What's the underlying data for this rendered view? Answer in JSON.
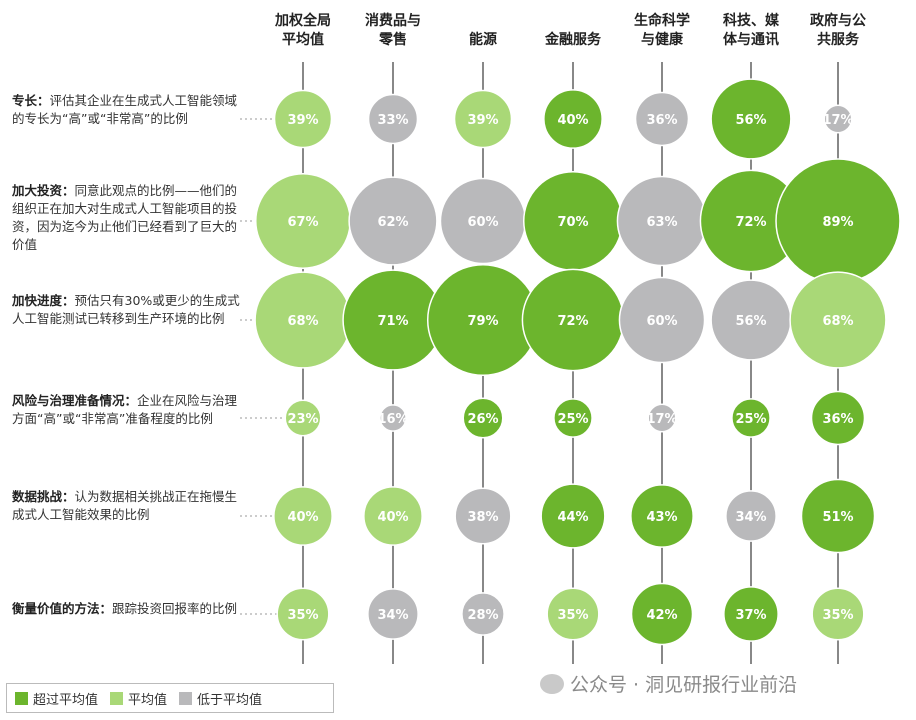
{
  "chart_data": {
    "type": "bubble-matrix",
    "columns": [
      "加权全局\n平均值",
      "消费品与\n零售",
      "能源",
      "金融服务",
      "生命科学\n与健康",
      "科技、媒\n体与通讯",
      "政府与公\n共服务"
    ],
    "rows": [
      {
        "title": "专长：",
        "desc": "评估其企业在生成式人工智能领域的专长为“高”或“非常高”的比例",
        "values": [
          39,
          33,
          39,
          40,
          36,
          56,
          17
        ],
        "status": [
          "avg",
          "below",
          "avg",
          "above",
          "below",
          "above",
          "below"
        ]
      },
      {
        "title": "加大投资：",
        "desc": "同意此观点的比例——他们的组织正在加大对生成式人工智能项目的投资，因为迄今为止他们已经看到了巨大的价值",
        "values": [
          67,
          62,
          60,
          70,
          63,
          72,
          89
        ],
        "status": [
          "avg",
          "below",
          "below",
          "above",
          "below",
          "above",
          "above"
        ]
      },
      {
        "title": "加快进度：",
        "desc": "预估只有30%或更少的生成式人工智能测试已转移到生产环境的比例",
        "values": [
          68,
          71,
          79,
          72,
          60,
          56,
          68
        ],
        "status": [
          "avg",
          "above",
          "above",
          "above",
          "below",
          "below",
          "avg"
        ]
      },
      {
        "title": "风险与治理准备情况：",
        "desc": "企业在风险与治理方面“高”或“非常高”准备程度的比例",
        "values": [
          23,
          16,
          26,
          25,
          17,
          25,
          36
        ],
        "status": [
          "avg",
          "below",
          "above",
          "above",
          "below",
          "above",
          "above"
        ]
      },
      {
        "title": "数据挑战：",
        "desc": "认为数据相关挑战正在拖慢生成式人工智能效果的比例",
        "values": [
          40,
          40,
          38,
          44,
          43,
          34,
          51
        ],
        "status": [
          "avg",
          "avg",
          "below",
          "above",
          "above",
          "below",
          "above"
        ]
      },
      {
        "title": "衡量价值的方法：",
        "desc": "跟踪投资回报率的比例",
        "values": [
          35,
          34,
          28,
          35,
          42,
          37,
          35
        ],
        "status": [
          "avg",
          "below",
          "below",
          "avg",
          "above",
          "above",
          "avg"
        ]
      }
    ],
    "legend": [
      {
        "key": "above",
        "label": "超过平均值",
        "color": "#6cb52d"
      },
      {
        "key": "avg",
        "label": "平均值",
        "color": "#a9d877"
      },
      {
        "key": "below",
        "label": "低于平均值",
        "color": "#b9b9bb"
      }
    ]
  },
  "watermark": "公众号 · 洞见研报行业前沿"
}
